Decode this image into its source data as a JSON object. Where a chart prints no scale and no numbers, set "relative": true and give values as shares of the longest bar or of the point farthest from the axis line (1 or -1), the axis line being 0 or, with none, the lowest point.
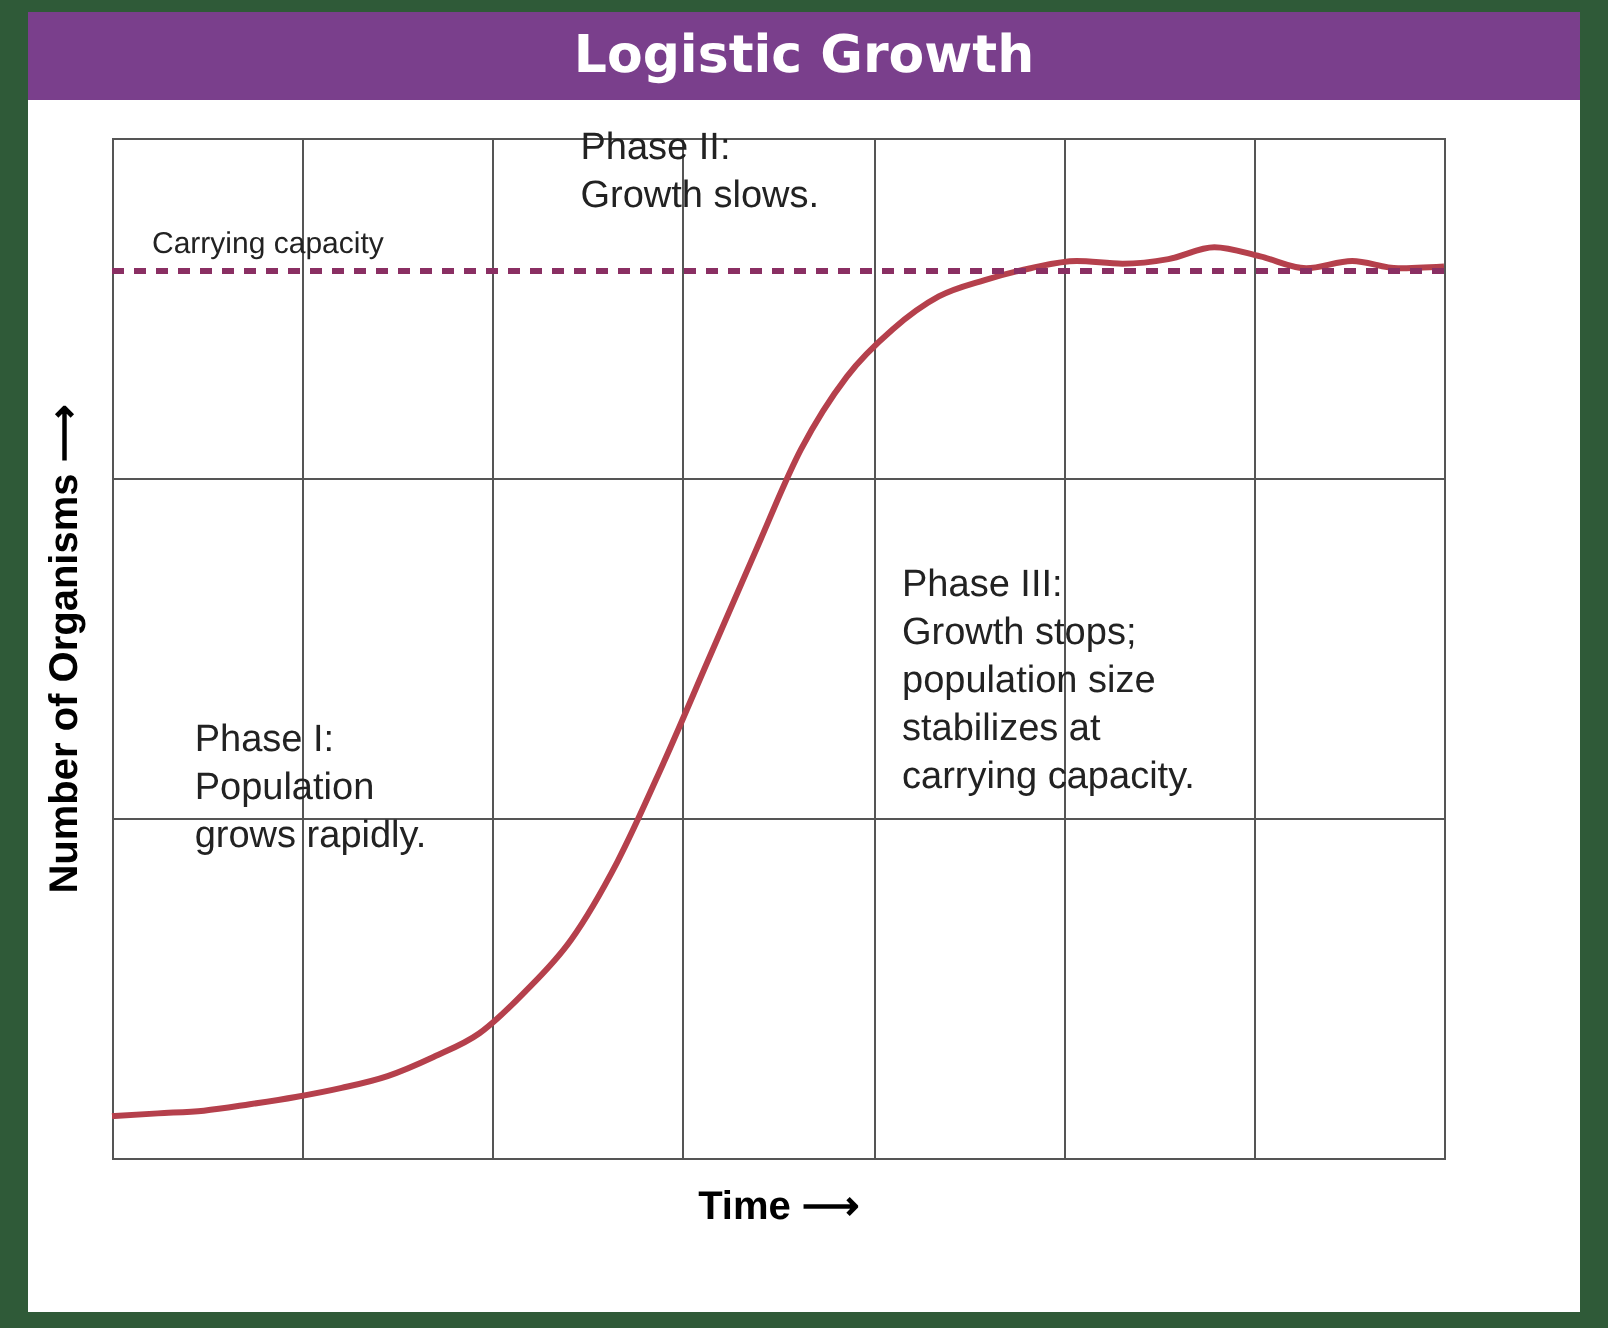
{
  "chart_data": {
    "type": "line",
    "title": "Logistic Growth",
    "xlabel": "Time ⟶",
    "ylabel": "Number of Organisms ⟶",
    "relative": true,
    "grid": true,
    "categories": [
      null,
      null,
      null,
      null,
      null,
      null,
      null,
      null,
      null,
      null,
      null,
      null,
      null,
      null,
      null,
      null,
      null,
      null,
      null,
      null,
      null,
      null,
      null,
      null,
      null,
      null,
      null,
      null,
      null,
      null
    ],
    "series": [
      {
        "color": "#b5404c",
        "values": [
          0.046,
          0.049,
          0.052,
          0.059,
          0.067,
          0.077,
          0.09,
          0.111,
          0.137,
          0.183,
          0.24,
          0.325,
          0.433,
          0.549,
          0.665,
          0.778,
          0.858,
          0.91,
          0.946,
          0.964,
          0.977,
          0.985,
          0.982,
          0.987,
          1.0,
          0.99,
          0.977,
          0.985,
          0.977,
          0.979
        ]
      }
    ],
    "ref_lines": [
      {
        "axis": "y",
        "value": 0.974,
        "label": "Carrying capacity",
        "color": "#8a2f63",
        "line_style": "dashed"
      }
    ],
    "annotations": [
      "Phase I:\nPopulation\ngrows rapidly.",
      "Phase II:\nGrowth slows.",
      "Phase III:\nGrowth stops;\npopulation size\nstabilizes at\ncarrying capacity."
    ]
  }
}
